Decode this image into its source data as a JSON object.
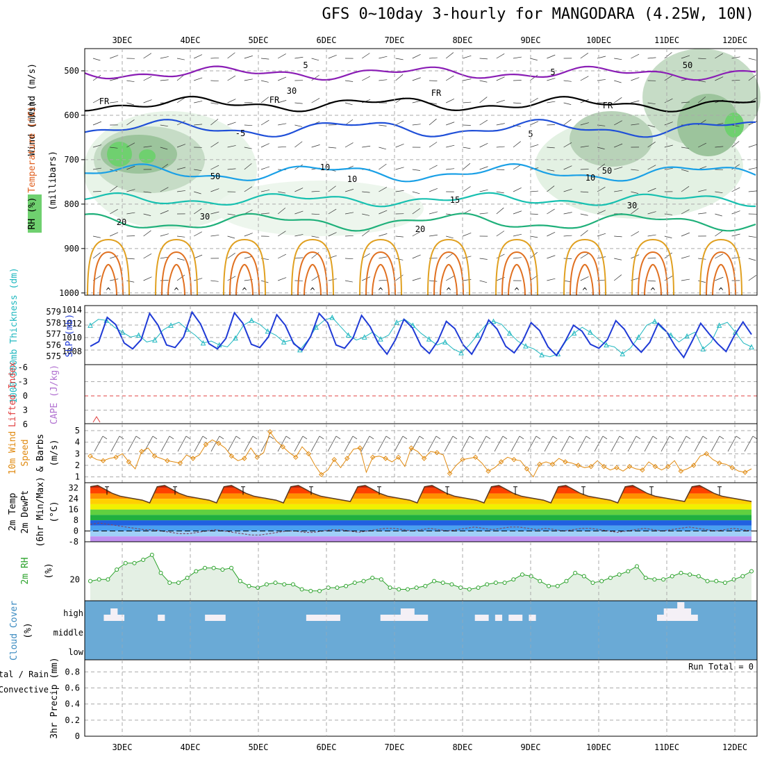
{
  "title": "GFS 0~10day 3-hourly for MANGODARA (4.25W, 10N)",
  "colors": {
    "purple": "#8a1db5",
    "black": "#000000",
    "blue": "#1f4fd8",
    "lightblue": "#1aa0e6",
    "teal": "#17c0b0",
    "green": "#1fb07a",
    "orange": "#e0a020",
    "darkorange": "#e07020",
    "magenta": "#c8108a",
    "slp": "#1f3ad6",
    "thick": "#20b8c0",
    "wind10": "#e08a10",
    "rhgreen": "#2aa22a",
    "cloud": "#6aaad6",
    "grid": "#aaaaaa"
  },
  "chart_data": [
    {
      "type": "contour",
      "panel": "upper-air",
      "ylabel_parts": [
        "RH (%)",
        "Temperature (°C)",
        "Wind (m/s)"
      ],
      "yunit": "(millibars)",
      "y_ticks": [
        "500",
        "600",
        "700",
        "800",
        "900",
        "1000"
      ],
      "x_ticks": [
        "3DEC",
        "4DEC",
        "5DEC",
        "6DEC",
        "7DEC",
        "8DEC",
        "9DEC",
        "10DEC",
        "11DEC",
        "12DEC"
      ],
      "contour_labels": [
        "-5",
        "5",
        "FR",
        "FR",
        "FR",
        "FR",
        "5",
        "5",
        "10",
        "10",
        "10",
        "15",
        "20",
        "20",
        "30",
        "30",
        "30",
        "50",
        "50",
        "50"
      ],
      "temperature_levels_mb": {
        "-5": 505,
        "FR": 575,
        "5": 630,
        "10": 730,
        "15": 790,
        "20": 840
      }
    },
    {
      "type": "line",
      "panel": "slp-thickness",
      "ylabel_left": "1000-500mb Thickness (dm)",
      "ylabel_right": "SLP (mb)",
      "y_ticks_left": [
        "579",
        "578",
        "577",
        "576",
        "575"
      ],
      "y_ticks_right": [
        "1014",
        "1012",
        "1010",
        "1008"
      ],
      "series": [
        {
          "name": "SLP (mb)",
          "values": [
            1008.8,
            1009.5,
            1013.2,
            1012.1,
            1009.3,
            1008.4,
            1009.8,
            1013.8,
            1012.0,
            1009.0,
            1008.6,
            1010.2,
            1014.0,
            1012.2,
            1009.2,
            1008.4,
            1010.0,
            1013.9,
            1012.3,
            1009.1,
            1008.6,
            1010.2,
            1013.6,
            1012.0,
            1009.2,
            1008.2,
            1010.3,
            1013.8,
            1012.4,
            1009.0,
            1008.5,
            1010.1,
            1013.5,
            1011.8,
            1009.2,
            1007.6,
            1009.8,
            1012.9,
            1011.6,
            1008.9,
            1007.7,
            1009.6,
            1012.6,
            1011.5,
            1009.0,
            1007.6,
            1009.8,
            1012.8,
            1011.4,
            1008.8,
            1007.8,
            1009.6,
            1012.4,
            1011.2,
            1008.7,
            1007.4,
            1009.5,
            1012.0,
            1011.1,
            1009.1,
            1008.5,
            1009.8,
            1012.7,
            1011.4,
            1009.2,
            1007.9,
            1009.4,
            1012.3,
            1011.0,
            1008.8,
            1007.1,
            1009.6,
            1012.3,
            1010.7,
            1009.2,
            1008.0,
            1010.5,
            1012.5,
            1010.6
          ]
        },
        {
          "name": "1000-500mb Thickness (dm)",
          "values": [
            578.0,
            578.6,
            578.5,
            577.8,
            577.3,
            576.8,
            577.0,
            576.3,
            576.5,
            577.5,
            578.0,
            578.3,
            577.6,
            577.0,
            576.2,
            576.4,
            576.0,
            575.8,
            576.7,
            578.0,
            578.5,
            578.1,
            577.4,
            577.0,
            576.3,
            576.5,
            575.5,
            576.5,
            577.8,
            578.5,
            578.8,
            577.9,
            577.0,
            576.5,
            576.8,
            577.3,
            576.6,
            577.0,
            578.3,
            578.6,
            578.0,
            577.2,
            576.6,
            576.0,
            576.3,
            575.6,
            575.2,
            576.0,
            577.0,
            578.0,
            578.4,
            578.1,
            577.2,
            576.4,
            575.9,
            575.6,
            575.0,
            574.8,
            575.1,
            576.4,
            577.2,
            577.8,
            577.3,
            576.6,
            576.0,
            575.8,
            575.1,
            575.7,
            576.8,
            578.0,
            578.4,
            577.6,
            577.0,
            576.3,
            576.9,
            577.3,
            575.6,
            576.3,
            578.0,
            578.3,
            577.3,
            576.2,
            575.8
          ]
        }
      ]
    },
    {
      "type": "line",
      "panel": "cape-li",
      "ylabel_left": "Lifted Index",
      "ylabel_right": "CAPE (J/kg)",
      "y_ticks": [
        "-6",
        "-3",
        "0",
        "3",
        "6"
      ],
      "series": [
        {
          "name": "CAPE",
          "values": [
            0
          ]
        }
      ]
    },
    {
      "type": "line",
      "panel": "wind10m",
      "ylabel": "10m Wind Speed (m/s) & Barbs",
      "y_ticks": [
        "5",
        "4",
        "3",
        "2",
        "1"
      ],
      "ylim": [
        0.5,
        5.6
      ],
      "series": [
        {
          "name": "10m Wind Speed",
          "values": [
            2.8,
            2.5,
            2.4,
            2.6,
            2.7,
            3.0,
            2.3,
            1.7,
            3.2,
            3.5,
            2.8,
            2.6,
            2.4,
            2.3,
            2.2,
            2.9,
            2.6,
            2.9,
            3.8,
            4.2,
            3.9,
            3.5,
            2.8,
            2.4,
            2.6,
            3.5,
            2.7,
            3.1,
            4.9,
            4.1,
            3.6,
            3.1,
            2.7,
            3.6,
            3.0,
            2.0,
            1.2,
            1.6,
            2.5,
            1.8,
            2.6,
            3.4,
            3.5,
            1.4,
            2.7,
            2.8,
            2.6,
            2.3,
            2.7,
            1.9,
            3.5,
            3.2,
            2.6,
            3.2,
            3.1,
            2.9,
            1.3,
            2.0,
            2.5,
            2.6,
            2.7,
            2.2,
            1.5,
            1.8,
            2.3,
            2.7,
            2.5,
            2.4,
            1.7,
            1.0,
            2.1,
            2.3,
            2.1,
            2.6,
            2.3,
            2.2,
            2.0,
            1.8,
            1.9,
            2.4,
            1.9,
            1.6,
            1.8,
            1.5,
            1.9,
            1.7,
            1.6,
            2.3,
            1.9,
            1.6,
            1.9,
            2.4,
            1.5,
            1.7,
            2.0,
            2.8,
            3.0,
            2.5,
            2.2,
            2.1,
            1.8,
            1.5,
            1.4,
            1.7
          ]
        }
      ]
    },
    {
      "type": "area",
      "panel": "temp2m",
      "ylabel": "2m Temp / 2m DewPt (6hr Min/Max) (°C)",
      "y_ticks": [
        "32",
        "24",
        "16",
        "8",
        "0",
        "-8"
      ],
      "ylim": [
        -8,
        36
      ],
      "series": [
        {
          "name": "2m Temp",
          "values": [
            33,
            34,
            31,
            28,
            26,
            25,
            24,
            23,
            21,
            33,
            34,
            31,
            28,
            26,
            25,
            24,
            23,
            21,
            33,
            34,
            31,
            28,
            26,
            25,
            24,
            23,
            21,
            33,
            34,
            31,
            28,
            26,
            25,
            24,
            23,
            22,
            33,
            34,
            31,
            28,
            26,
            25,
            24,
            23,
            21,
            33,
            34,
            31,
            28,
            26,
            25,
            24,
            23,
            21,
            33,
            34,
            31,
            28,
            26,
            25,
            24,
            23,
            21,
            33,
            34,
            31,
            28,
            26,
            25,
            24,
            23,
            21,
            33,
            34,
            31,
            28,
            26,
            25,
            24,
            23,
            22,
            33,
            34,
            31,
            28,
            26,
            25,
            24,
            23,
            22
          ]
        },
        {
          "name": "2m DewPt",
          "values": [
            5,
            6,
            5,
            4,
            3,
            2,
            1,
            1,
            0,
            -1,
            -2,
            -2,
            -1,
            0,
            1,
            0,
            -1,
            -2,
            -3,
            -3,
            -2,
            -1,
            0,
            0,
            -1,
            -1,
            0,
            1,
            1,
            0,
            -1,
            0,
            1,
            2,
            2,
            1,
            0,
            1,
            2,
            1,
            0,
            1,
            2,
            3,
            2,
            1,
            2,
            3,
            3,
            2,
            1,
            2,
            1,
            0,
            1,
            2,
            2,
            1,
            0,
            -1,
            0,
            1,
            2,
            1,
            0,
            1,
            2,
            3,
            2,
            1,
            0,
            1,
            2,
            1,
            0
          ]
        }
      ]
    },
    {
      "type": "area",
      "panel": "rh2m",
      "ylabel": "2m RH (%)",
      "y_ticks": [
        "20"
      ],
      "ylim": [
        7,
        43
      ],
      "series": [
        {
          "name": "2m RH",
          "values": [
            19,
            20,
            20,
            26,
            30,
            30,
            32,
            35,
            24,
            18,
            18,
            21,
            25,
            27,
            27,
            26,
            27,
            19,
            16,
            15,
            17,
            18,
            17,
            17,
            14,
            13,
            13,
            15,
            15,
            16,
            18,
            19,
            21,
            20,
            15,
            14,
            14,
            15,
            16,
            19,
            18,
            17,
            15,
            14,
            15,
            17,
            18,
            18,
            20,
            23,
            22,
            19,
            16,
            16,
            19,
            24,
            22,
            18,
            19,
            21,
            23,
            25,
            28,
            21,
            20,
            20,
            22,
            24,
            23,
            22,
            19,
            19,
            18,
            20,
            22,
            25
          ]
        }
      ]
    },
    {
      "type": "bar",
      "panel": "cloud",
      "ylabel": "Cloud Cover (%)",
      "y_ticks": [
        "high",
        "middle",
        "low"
      ],
      "series": [
        {
          "name": "high cloud",
          "values": [
            0,
            0,
            1,
            2,
            1,
            0,
            0,
            0,
            0,
            0,
            1,
            0,
            0,
            0,
            0,
            0,
            0,
            1,
            1,
            1,
            0,
            0,
            0,
            0,
            0,
            0,
            0,
            0,
            0,
            0,
            0,
            0,
            1,
            1,
            1,
            1,
            1,
            0,
            0,
            0,
            0,
            0,
            0,
            1,
            1,
            1,
            2,
            2,
            1,
            1,
            0,
            0,
            0,
            0,
            0,
            0,
            0,
            1,
            1,
            0,
            1,
            0,
            1,
            1,
            0,
            1,
            0,
            0,
            0,
            0,
            0,
            0,
            0,
            0,
            0,
            0,
            0,
            0,
            0,
            0,
            0,
            0,
            0,
            0,
            1,
            2,
            2,
            3,
            2,
            1,
            0,
            0,
            0,
            0,
            0,
            0,
            0,
            0
          ]
        }
      ]
    },
    {
      "type": "bar",
      "panel": "precip",
      "ylabel": "3hr Precip (mm)",
      "ylabel_left": [
        "Total / Rain",
        "Convective"
      ],
      "y_ticks": [
        "0.8",
        "0.6",
        "0.4",
        "0.2",
        "0"
      ],
      "annotation": "Run Total = 0",
      "series": [
        {
          "name": "Total / Rain",
          "values": [
            0
          ]
        }
      ]
    }
  ]
}
